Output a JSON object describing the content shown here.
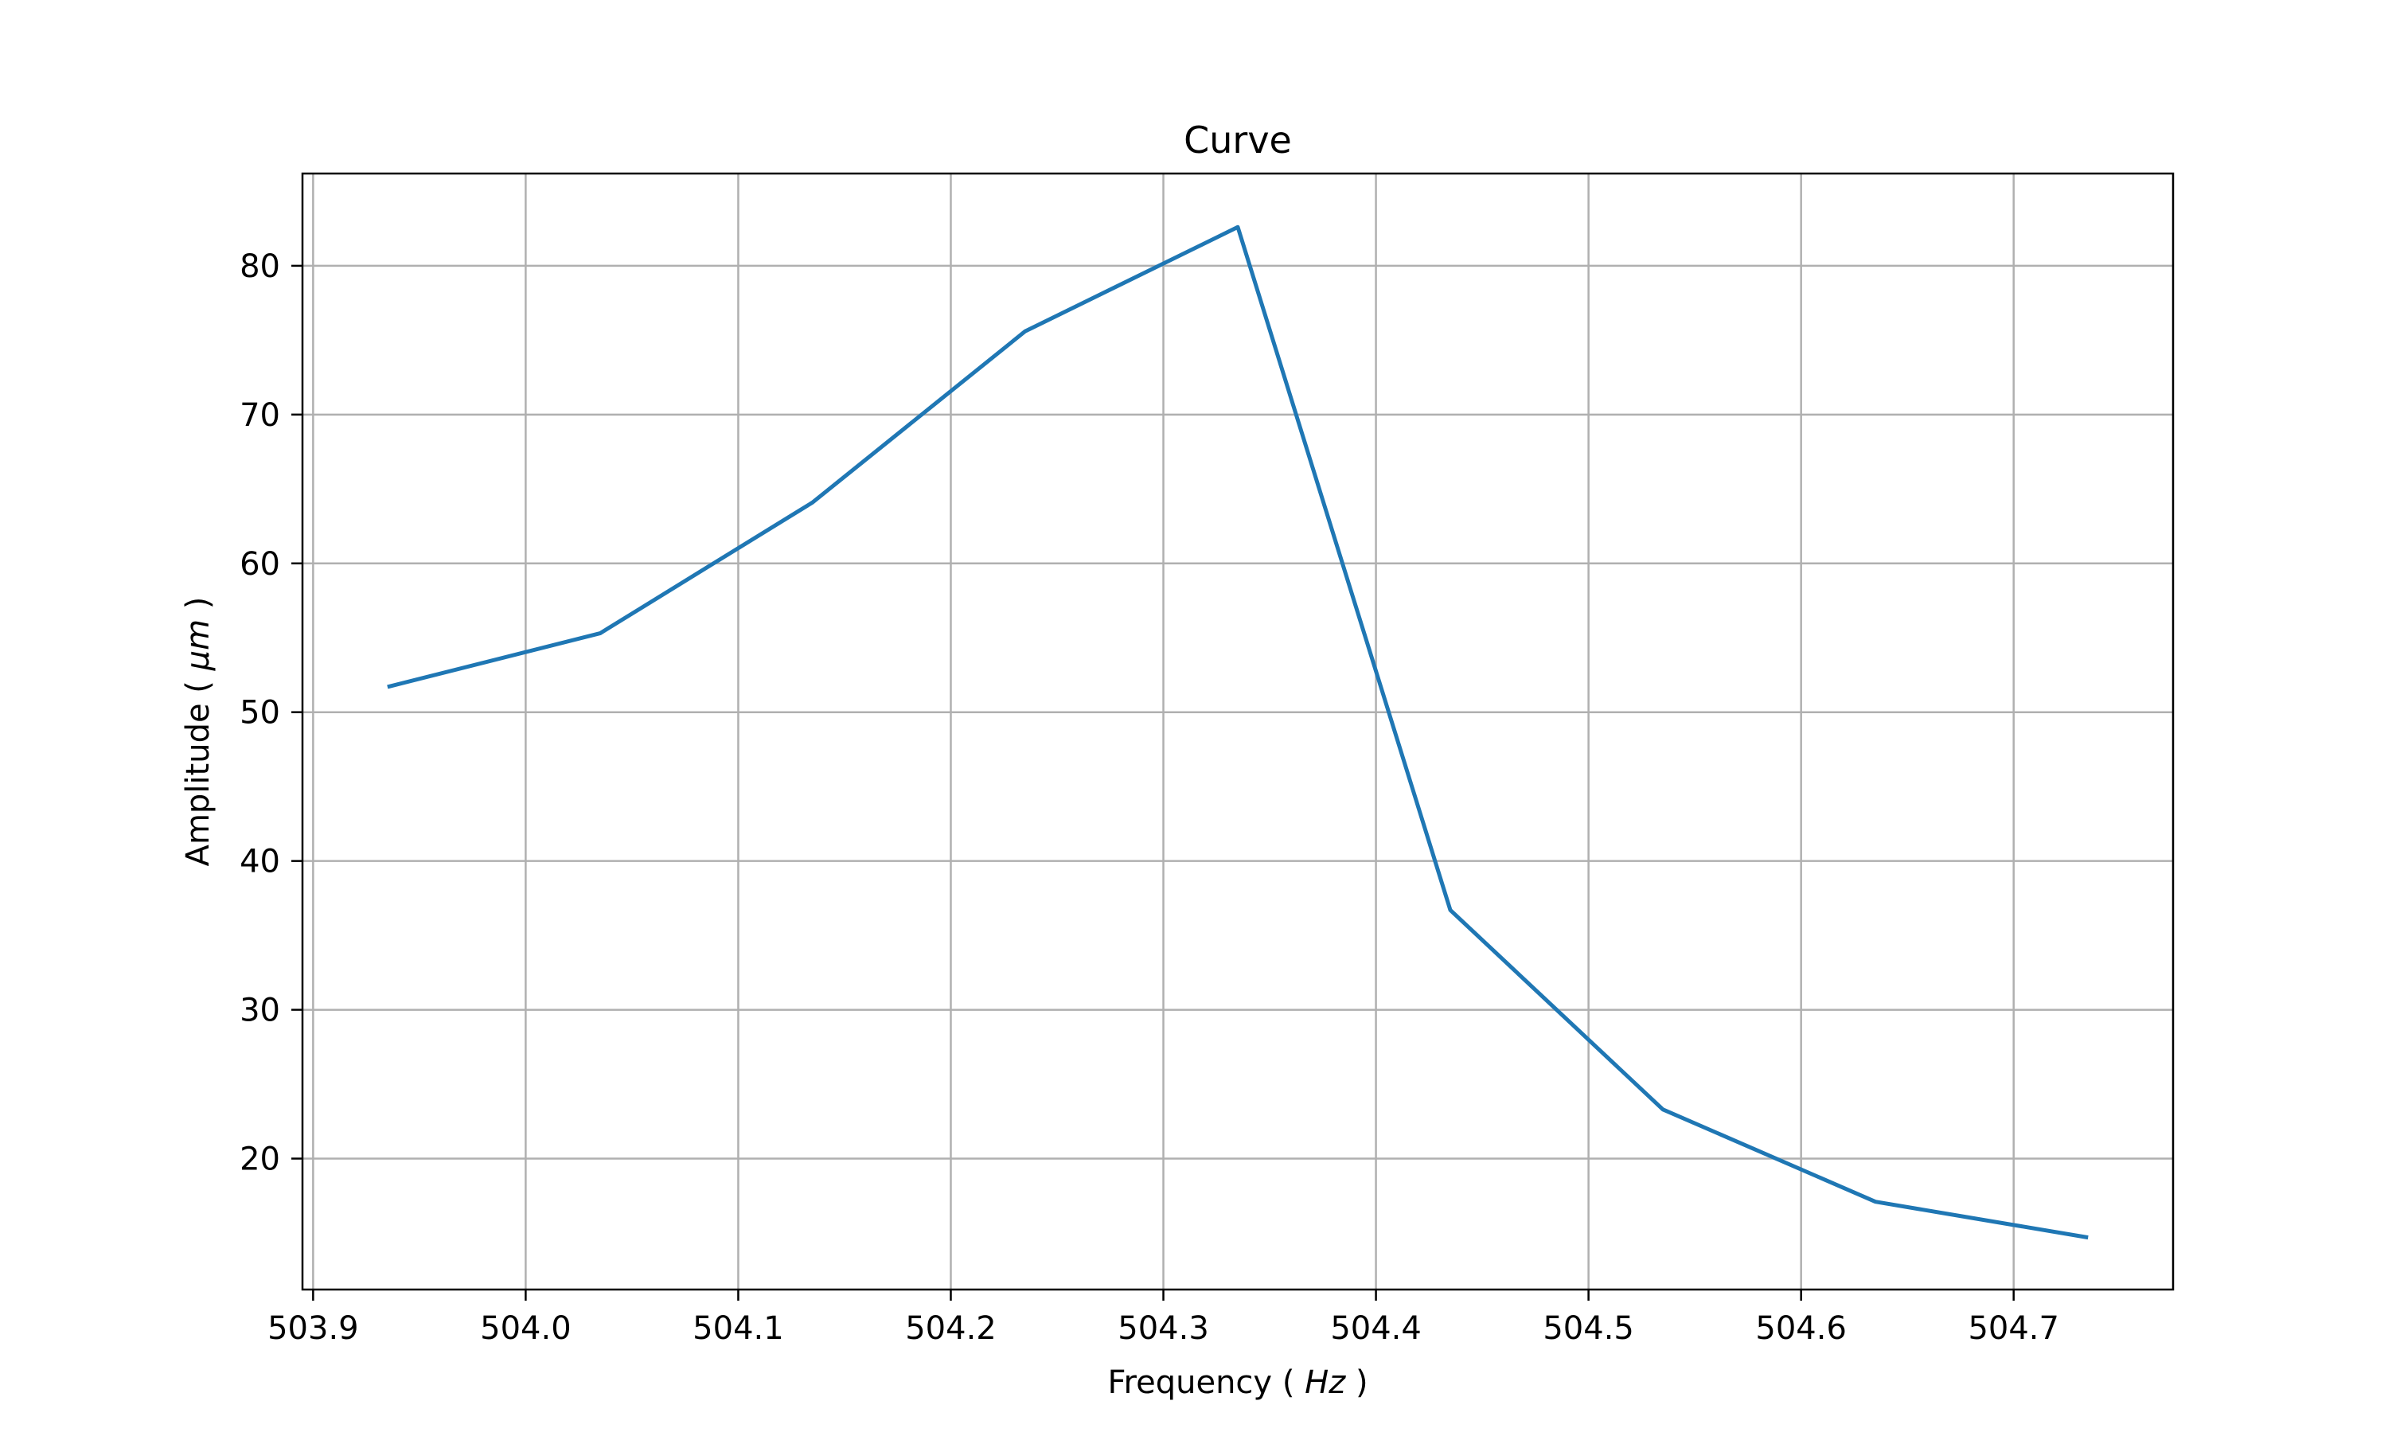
{
  "chart_data": {
    "type": "line",
    "title": "Curve",
    "xlabel": "Frequency",
    "xlabel_unit": "Hz",
    "ylabel": "Amplitude",
    "ylabel_unit": "μm",
    "xlim": [
      503.895,
      504.775
    ],
    "ylim": [
      11.2,
      86.2
    ],
    "xticks": [
      503.9,
      504.0,
      504.1,
      504.2,
      504.3,
      504.4,
      504.5,
      504.6,
      504.7
    ],
    "xtick_labels": [
      "503.9",
      "504.0",
      "504.1",
      "504.2",
      "504.3",
      "504.4",
      "504.5",
      "504.6",
      "504.7"
    ],
    "yticks": [
      20,
      30,
      40,
      50,
      60,
      70,
      80
    ],
    "ytick_labels": [
      "20",
      "30",
      "40",
      "50",
      "60",
      "70",
      "80"
    ],
    "grid": true,
    "series": [
      {
        "color": "#1f77b4",
        "x": [
          503.935,
          504.035,
          504.135,
          504.235,
          504.335,
          504.435,
          504.535,
          504.635,
          504.735
        ],
        "y": [
          51.7,
          55.3,
          64.1,
          75.6,
          82.6,
          36.7,
          23.3,
          17.1,
          14.7
        ]
      }
    ]
  }
}
